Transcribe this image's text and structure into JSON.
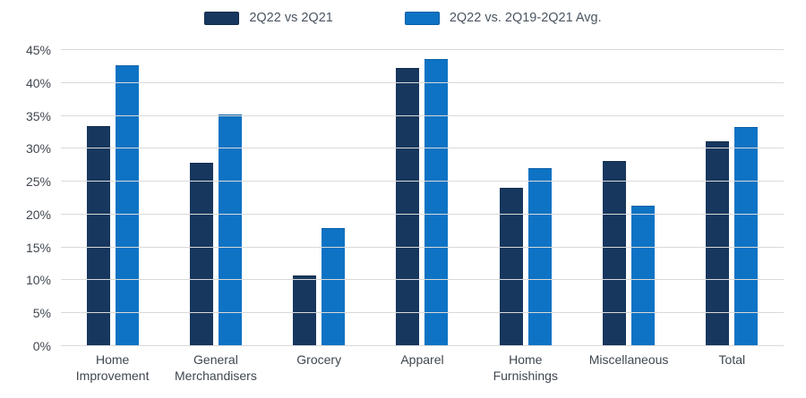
{
  "legend": {
    "items": [
      {
        "label": "2Q22 vs 2Q21"
      },
      {
        "label": "2Q22 vs. 2Q19-2Q21 Avg."
      }
    ]
  },
  "chart_data": {
    "type": "bar",
    "title": "",
    "xlabel": "",
    "ylabel": "",
    "categories": [
      "Home Improvement",
      "General Merchandisers",
      "Grocery",
      "Apparel",
      "Home Furnishings",
      "Miscellaneous",
      "Total"
    ],
    "series": [
      {
        "name": "2Q22 vs 2Q21",
        "color": "#17375e",
        "border_color": "#122c4c",
        "values": [
          33.4,
          27.9,
          10.7,
          42.3,
          24.1,
          28.2,
          31.2
        ]
      },
      {
        "name": "2Q22 vs. 2Q19-2Q21 Avg.",
        "color": "#0e73c4",
        "border_color": "#0b60a8",
        "values": [
          42.7,
          35.2,
          18.0,
          43.7,
          27.0,
          21.4,
          33.3
        ]
      }
    ],
    "ylim": [
      0,
      45
    ],
    "ytick_step": 5,
    "ytick_labels": [
      "0%",
      "5%",
      "10%",
      "15%",
      "20%",
      "25%",
      "30%",
      "35%",
      "40%",
      "45%"
    ],
    "grid": true,
    "legend_position": "top",
    "colors": {
      "gridline": "#d9d9d9",
      "axis_text": "#40474f",
      "legend_text": "#4a5460",
      "background": "#ffffff"
    }
  }
}
